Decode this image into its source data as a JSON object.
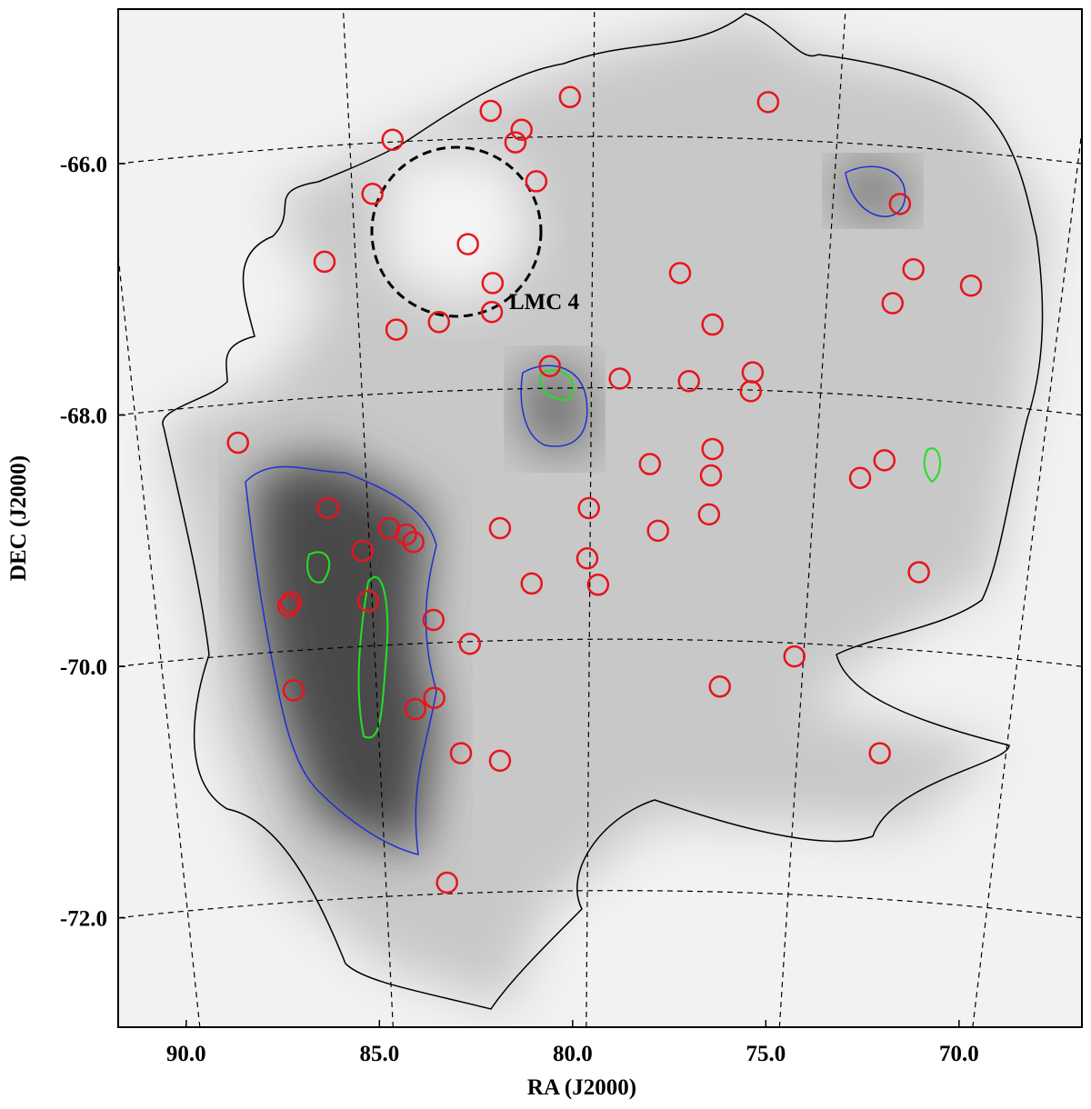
{
  "chart_data": {
    "type": "scatter",
    "xlabel": "RA (J2000)",
    "ylabel": "DEC (J2000)",
    "annotation": "LMC 4",
    "color": "#e8141c",
    "xlim": [
      91.76,
      66.82
    ],
    "ylim": [
      -72.87,
      -64.77
    ],
    "xticks": [
      {
        "value": 90,
        "label": "90.0"
      },
      {
        "value": 85,
        "label": "85.0"
      },
      {
        "value": 80,
        "label": "80.0"
      },
      {
        "value": 75,
        "label": "75.0"
      },
      {
        "value": 70,
        "label": "70.0"
      }
    ],
    "yticks": [
      {
        "value": -66,
        "label": "-66.0"
      },
      {
        "value": -68,
        "label": "-68.0"
      },
      {
        "value": -70,
        "label": "-70.0"
      },
      {
        "value": -72,
        "label": "-72.0"
      }
    ],
    "grid": true,
    "x": [
      80.07,
      82.12,
      74.94,
      84.66,
      81.32,
      81.48,
      80.94,
      85.18,
      82.71,
      86.42,
      82.07,
      71.53,
      71.18,
      69.69,
      71.72,
      77.22,
      82.09,
      83.46,
      84.56,
      76.38,
      80.59,
      78.78,
      76.99,
      75.34,
      75.39,
      88.66,
      78.0,
      76.38,
      72.56,
      71.93,
      76.42,
      86.33,
      81.88,
      79.58,
      84.75,
      84.31,
      84.12,
      85.44,
      77.79,
      76.47,
      79.62,
      81.06,
      79.34,
      71.04,
      87.29,
      87.36,
      85.29,
      83.6,
      82.66,
      74.26,
      76.19,
      83.58,
      84.07,
      87.22,
      82.89,
      81.88,
      72.05,
      83.25
    ],
    "y": [
      -65.47,
      -65.58,
      -65.51,
      -65.81,
      -65.73,
      -65.83,
      -66.14,
      -66.24,
      -66.64,
      -66.78,
      -66.95,
      -66.32,
      -66.84,
      -66.97,
      -67.11,
      -66.87,
      -67.18,
      -67.26,
      -67.32,
      -67.28,
      -67.61,
      -67.71,
      -67.73,
      -67.66,
      -67.81,
      -68.22,
      -68.39,
      -68.27,
      -68.5,
      -68.36,
      -68.48,
      -68.74,
      -68.9,
      -68.74,
      -68.9,
      -68.95,
      -69.01,
      -69.08,
      -68.92,
      -68.79,
      -69.14,
      -69.34,
      -69.35,
      -69.25,
      -69.49,
      -69.52,
      -69.48,
      -69.63,
      -69.82,
      -69.92,
      -70.16,
      -70.25,
      -70.34,
      -70.19,
      -70.69,
      -70.75,
      -70.69,
      -71.72
    ]
  }
}
